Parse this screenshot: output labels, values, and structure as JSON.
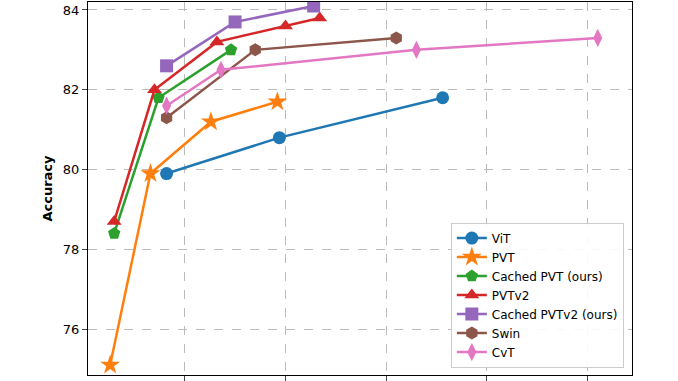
{
  "chart_data": {
    "type": "line",
    "y_label": "Accuracy",
    "xlim": [
      0.2,
      27.2
    ],
    "xticks": [
      5,
      10,
      15,
      20,
      25
    ],
    "ylim": [
      74.85,
      84.2
    ],
    "yticks": [
      76,
      78,
      80,
      82,
      84
    ],
    "grid": true,
    "legend": "lower right",
    "tick_labels": "y",
    "series": [
      {
        "name": "ViT",
        "color": "#1f77b4",
        "marker": "circle",
        "x": [
          4.1,
          9.7,
          17.8
        ],
        "values": [
          79.9,
          80.8,
          81.8
        ]
      },
      {
        "name": "PVT",
        "color": "#ff7f0e",
        "marker": "star",
        "x": [
          1.3,
          3.3,
          6.3,
          9.6
        ],
        "values": [
          75.1,
          79.9,
          81.2,
          81.7
        ]
      },
      {
        "name": "Cached PVT (ours)",
        "color": "#2ca02c",
        "marker": "pentagon",
        "x": [
          1.5,
          3.7,
          7.3
        ],
        "values": [
          78.4,
          81.8,
          83.0
        ]
      },
      {
        "name": "PVTv2",
        "color": "#d62728",
        "marker": "triangle-up",
        "x": [
          1.5,
          3.5,
          6.6,
          10.0,
          11.7
        ],
        "values": [
          78.7,
          82.0,
          83.2,
          83.6,
          83.8
        ]
      },
      {
        "name": "Cached PVTv2 (ours)",
        "color": "#9467bd",
        "marker": "square",
        "x": [
          4.1,
          7.5,
          11.4
        ],
        "values": [
          82.6,
          83.7,
          84.1
        ]
      },
      {
        "name": "Swin",
        "color": "#8c564b",
        "marker": "hexagon",
        "x": [
          4.1,
          8.5,
          15.5
        ],
        "values": [
          81.3,
          83.0,
          83.3
        ]
      },
      {
        "name": "CvT",
        "color": "#e377c2",
        "marker": "diamond-tall",
        "x": [
          4.1,
          6.8,
          16.5,
          25.5
        ],
        "values": [
          81.6,
          82.5,
          83.0,
          83.3
        ]
      }
    ]
  }
}
